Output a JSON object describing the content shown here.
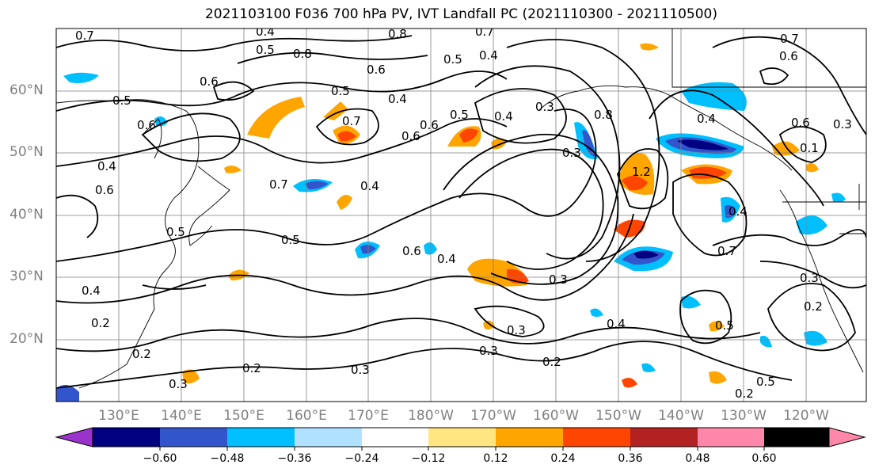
{
  "title": "2021103100 F036 700 hPa PV, IVT Landfall PC (2021110300 - 2021110500)",
  "lat_labels": [
    "60°N",
    "50°N",
    "40°N",
    "30°N",
    "20°N"
  ],
  "lon_labels": [
    "130°E",
    "140°E",
    "150°E",
    "160°E",
    "170°E",
    "180°W",
    "170°W",
    "160°W",
    "150°W",
    "140°W",
    "130°W",
    "120°W"
  ],
  "contour_labels": [
    "0.7",
    "0.4",
    "0.8",
    "0.5",
    "0.8",
    "0.5",
    "0.4",
    "0.7",
    "0.6",
    "0.6",
    "0.5",
    "0.5",
    "0.4",
    "0.6",
    "0.7",
    "0.6",
    "0.6",
    "0.3",
    "0.4",
    "0.5",
    "0.4",
    "0.7",
    "0.4",
    "0.6",
    "0.8",
    "0.3",
    "1.2",
    "0.4",
    "0.5",
    "0.4",
    "0.6",
    "0.4",
    "0.7",
    "0.5",
    "0.3",
    "0.4",
    "0.3",
    "0.2",
    "0.3",
    "0.2",
    "0.3",
    "0.2",
    "0.4",
    "0.3",
    "0.5",
    "0.2",
    "0.3",
    "0.2",
    "0.5",
    "0.2",
    "0.6",
    "0.1",
    "0.3",
    "0.7",
    "0.6"
  ],
  "colorbar": {
    "tick_labels": [
      "−0.60",
      "−0.48",
      "−0.36",
      "−0.24",
      "−0.12",
      "0.12",
      "0.24",
      "0.36",
      "0.48",
      "0.60"
    ],
    "bins": [
      {
        "from": "−0.72",
        "color": "#9933CC"
      },
      {
        "from": "−0.60",
        "color": "#000080"
      },
      {
        "from": "−0.48",
        "color": "#3355CC"
      },
      {
        "from": "−0.36",
        "color": "#00BFFF"
      },
      {
        "from": "−0.24",
        "color": "#B0E2FF"
      },
      {
        "from": "−0.12",
        "color": "#FFFFFF"
      },
      {
        "from": "0.12",
        "color": "#FFE680"
      },
      {
        "from": "0.24",
        "color": "#FFA500"
      },
      {
        "from": "0.36",
        "color": "#FF4500"
      },
      {
        "from": "0.48",
        "color": "#B22222"
      },
      {
        "from": "0.60",
        "color": "#FF88AA"
      }
    ]
  },
  "colors": {
    "positive_medium": "#FFA500",
    "positive_strong": "#FF4500",
    "positive_extreme": "#B22222",
    "negative_light": "#B0E2FF",
    "negative_medium": "#00BFFF",
    "negative_strong": "#3355CC",
    "negative_extreme": "#000080",
    "contour": "#000000",
    "grid": "#808080",
    "axis_label": "#808080"
  }
}
